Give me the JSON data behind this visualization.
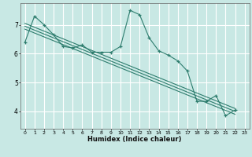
{
  "xlabel": "Humidex (Indice chaleur)",
  "background_color": "#c8e8e4",
  "grid_color": "#ffffff",
  "line_color": "#2e7d6e",
  "x_ticks": [
    0,
    1,
    2,
    3,
    4,
    5,
    6,
    7,
    8,
    9,
    10,
    11,
    12,
    13,
    14,
    15,
    16,
    17,
    18,
    19,
    20,
    21,
    22,
    23
  ],
  "y_ticks": [
    4,
    5,
    6,
    7
  ],
  "ylim": [
    3.4,
    7.75
  ],
  "xlim": [
    -0.5,
    23.5
  ],
  "lines": [
    {
      "x": [
        0,
        1,
        2,
        3,
        4,
        5,
        6,
        7,
        8,
        9,
        10,
        11,
        12,
        13,
        14,
        15,
        16,
        17,
        18,
        19,
        20,
        21,
        22
      ],
      "y": [
        6.4,
        7.3,
        7.0,
        6.65,
        6.25,
        6.2,
        6.3,
        6.05,
        6.05,
        6.05,
        6.25,
        7.5,
        7.35,
        6.55,
        6.1,
        5.95,
        5.75,
        5.4,
        4.35,
        4.35,
        4.55,
        3.85,
        4.05
      ],
      "marker": true
    },
    {
      "x": [
        0,
        22
      ],
      "y": [
        7.05,
        4.1
      ],
      "marker": false
    },
    {
      "x": [
        0,
        22
      ],
      "y": [
        6.95,
        4.0
      ],
      "marker": false
    },
    {
      "x": [
        0,
        22
      ],
      "y": [
        6.85,
        3.9
      ],
      "marker": false
    }
  ],
  "figsize": [
    3.2,
    2.0
  ],
  "dpi": 100
}
